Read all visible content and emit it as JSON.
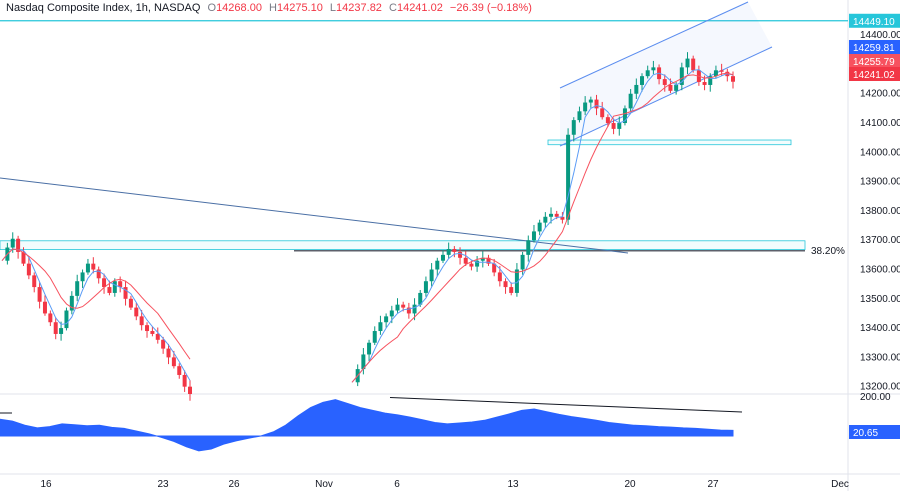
{
  "header": {
    "symbol": "Nasdaq Composite Index, 1h, NASDAQ",
    "open_label": "O",
    "open": "14268.00",
    "high_label": "H",
    "high": "14275.10",
    "low_label": "L",
    "low": "14237.82",
    "close_label": "C",
    "close": "14241.02",
    "change": "−26.39 (−0.18%)"
  },
  "colors": {
    "up": "#089981",
    "down": "#f23645",
    "ma_fast": "#5b9cf6",
    "ma_slow": "#f7525f",
    "resistance": "#26c6da",
    "fib": "#5d606b",
    "channel": "#5b8def",
    "osc": "#2962ff"
  },
  "chart_data": {
    "type": "candlestick",
    "title": "Nasdaq Composite Index, 1h, NASDAQ",
    "y_ticks": [
      "14400.00",
      "14300.00",
      "14200.00",
      "14100.00",
      "14000.00",
      "13900.00",
      "13800.00",
      "13700.00",
      "13600.00",
      "13500.00",
      "13400.00",
      "13300.00",
      "13200.00"
    ],
    "ylim": [
      13175,
      14520
    ],
    "x_ticks": [
      "16",
      "23",
      "26",
      "Nov",
      "6",
      "13",
      "20",
      "27",
      "Dec"
    ],
    "price_tags": [
      {
        "label": "14449.10",
        "value": 14449.1,
        "kind": "resistance"
      },
      {
        "label": "14259.81",
        "value": 14259.81,
        "kind": "ma_fast"
      },
      {
        "label": "14255.79",
        "value": 14255.79,
        "kind": "ma_slow"
      },
      {
        "label": "14241.02",
        "value": 14241.02,
        "kind": "last"
      }
    ],
    "fib_label": "38.20%",
    "fib_level": 13664,
    "resistance_level": 14449.1,
    "support_zone": [
      13668,
      13698
    ],
    "breakout_zone": [
      14026,
      14042
    ],
    "series": [
      {
        "values": [
          13630,
          13675,
          13705,
          13660,
          13620,
          13580,
          13540,
          13490,
          13450,
          13420,
          13380,
          13400,
          13460,
          13510,
          13560,
          13590,
          13620,
          13600,
          13570,
          13540,
          13520,
          13560,
          13540,
          13500,
          13470,
          13440,
          13410,
          13390,
          13380,
          13360,
          13330,
          13300,
          13270,
          13240,
          13200,
          13175
        ]
      },
      {
        "values": [
          13215,
          13260,
          13310,
          13350,
          13390,
          13420,
          13440,
          13460,
          13480,
          13470,
          13450,
          13480,
          13520,
          13560,
          13600,
          13630,
          13650,
          13670,
          13660,
          13640,
          13620,
          13610,
          13630,
          13640,
          13620,
          13590,
          13560,
          13540,
          13520,
          13600,
          13650,
          13700,
          13730,
          13760,
          13780,
          13790,
          13780,
          13770,
          14060,
          14110,
          14140,
          14170,
          14180,
          14150,
          14120,
          14100,
          14080,
          14100,
          14150,
          14200,
          14230,
          14260,
          14280,
          14290,
          14250,
          14230,
          14210,
          14230,
          14290,
          14320,
          14280,
          14240,
          14230,
          14260,
          14280,
          14275,
          14260,
          14241
        ]
      }
    ]
  },
  "oscillator": {
    "value_label": "20.65",
    "max_label": "200.00",
    "values": [
      62,
      55,
      40,
      30,
      35,
      45,
      42,
      38,
      40,
      32,
      28,
      18,
      8,
      -5,
      -20,
      -40,
      -55,
      -48,
      -30,
      -18,
      -8,
      0,
      15,
      40,
      75,
      105,
      125,
      135,
      120,
      105,
      95,
      85,
      78,
      70,
      60,
      50,
      45,
      48,
      52,
      58,
      70,
      82,
      95,
      100,
      90,
      80,
      72,
      65,
      58,
      50,
      45,
      40,
      38,
      35,
      33,
      30,
      28,
      25,
      22,
      20.65
    ],
    "divergence": [
      135,
      90
    ]
  }
}
